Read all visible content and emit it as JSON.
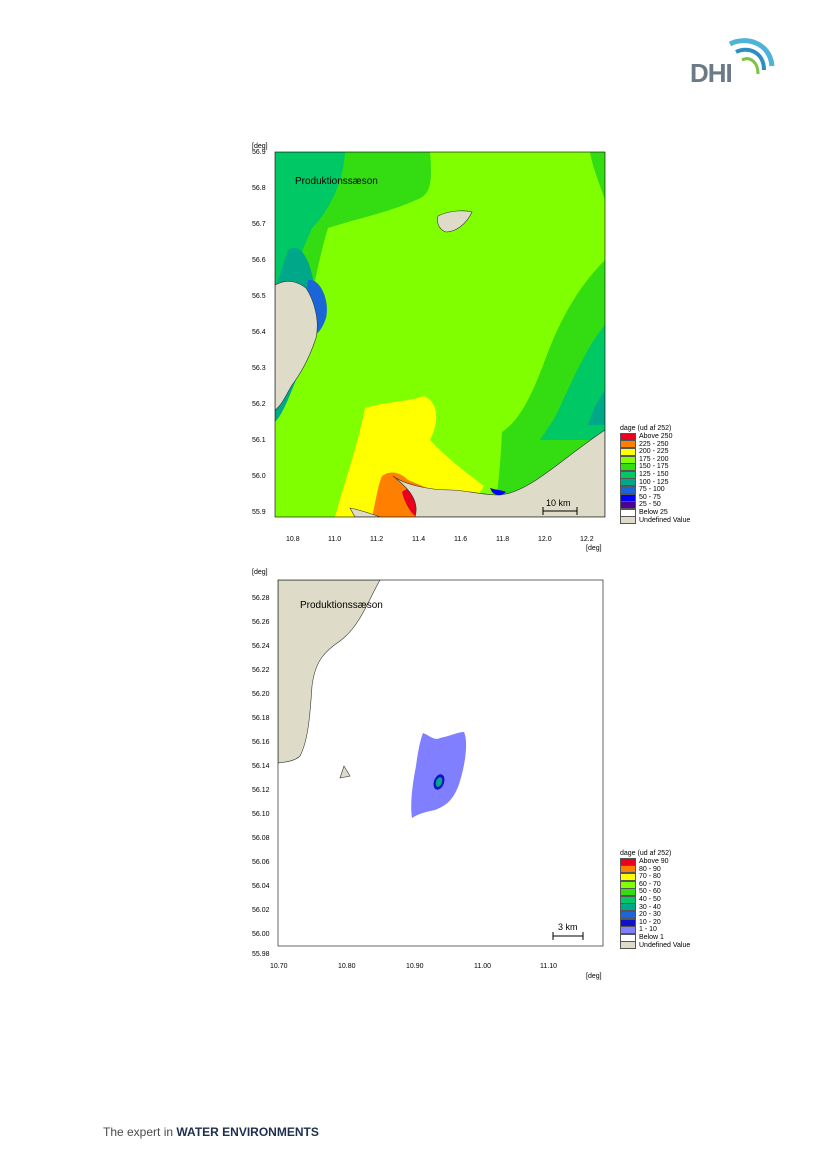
{
  "brand": {
    "logo_text": "DHI",
    "tagline_lead": "The expert in ",
    "tagline_strong": "WATER ENVIRONMENTS",
    "colors": {
      "wave_light": "#4fb3d9",
      "wave_mid": "#2e8fbf",
      "wave_green": "#7dc242",
      "text": "#6c7a87"
    }
  },
  "maps": [
    {
      "axis_unit": "[deg]",
      "title": "Produktionssæson",
      "y_ticks": [
        "56.9",
        "56.8",
        "56.7",
        "56.6",
        "56.5",
        "56.4",
        "56.3",
        "56.2",
        "56.1",
        "56.0",
        "55.9"
      ],
      "x_ticks": [
        "10.8",
        "11.0",
        "11.2",
        "11.4",
        "11.6",
        "11.8",
        "12.0",
        "12.2"
      ],
      "scale_bar": "10 km",
      "legend": {
        "title": "dage (ud af 252)",
        "items": [
          {
            "label": "Above 250",
            "color": "#e8001c"
          },
          {
            "label": "225 - 250",
            "color": "#ff7f00"
          },
          {
            "label": "200 - 225",
            "color": "#ffff00"
          },
          {
            "label": "175 - 200",
            "color": "#80ff00"
          },
          {
            "label": "150 - 175",
            "color": "#33dd11"
          },
          {
            "label": "125 - 150",
            "color": "#00c864"
          },
          {
            "label": "100 - 125",
            "color": "#00a88a"
          },
          {
            "label": "75 - 100",
            "color": "#1a66d9"
          },
          {
            "label": "50 - 75",
            "color": "#0000ff"
          },
          {
            "label": "25 - 50",
            "color": "#4b0096"
          },
          {
            "label": "Below 25",
            "color": "#ffffff"
          },
          {
            "label": "Undefined Value",
            "color": "#dedcc8"
          }
        ]
      }
    },
    {
      "axis_unit": "[deg]",
      "title": "Produktionssæson",
      "y_ticks": [
        "56.28",
        "56.26",
        "56.24",
        "56.22",
        "56.20",
        "56.18",
        "56.16",
        "56.14",
        "56.12",
        "56.10",
        "56.08",
        "56.06",
        "56.04",
        "56.02",
        "56.00",
        "55.98"
      ],
      "x_ticks": [
        "10.70",
        "10.80",
        "10.90",
        "11.00",
        "11.10"
      ],
      "scale_bar": "3 km",
      "legend": {
        "title": "dage (ud af 252)",
        "items": [
          {
            "label": "Above 90",
            "color": "#e8001c"
          },
          {
            "label": "80 - 90",
            "color": "#ff7f00"
          },
          {
            "label": "70 - 80",
            "color": "#ffff00"
          },
          {
            "label": "60 - 70",
            "color": "#80ff00"
          },
          {
            "label": "50 - 60",
            "color": "#33dd11"
          },
          {
            "label": "40 - 50",
            "color": "#00c864"
          },
          {
            "label": "30 - 40",
            "color": "#00a88a"
          },
          {
            "label": "20 - 30",
            "color": "#1a66d9"
          },
          {
            "label": "10 - 20",
            "color": "#1010c8"
          },
          {
            "label": "1 - 10",
            "color": "#7f7fff"
          },
          {
            "label": "Below 1",
            "color": "#ffffff"
          },
          {
            "label": "Undefined Value",
            "color": "#dedcc8"
          }
        ]
      }
    }
  ]
}
